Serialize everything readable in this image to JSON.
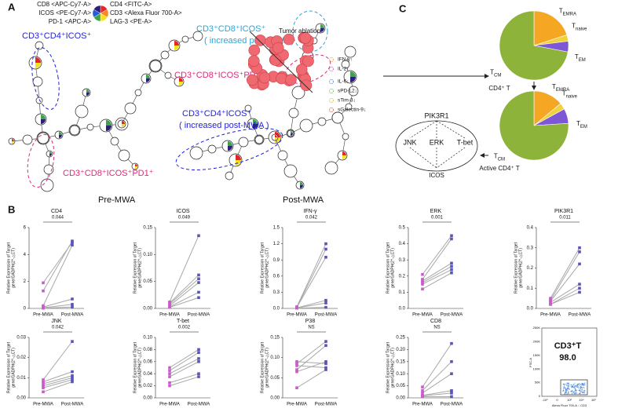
{
  "panel_labels": [
    "A",
    "B",
    "C"
  ],
  "panel_a": {
    "key_labels_left": [
      "CD8 <APC-Cy7-A>",
      "ICOS <PE-Cy7-A>",
      "PD-1 <APC-A>"
    ],
    "key_labels_right": [
      "CD4 <FITC-A>",
      "CD3 <Alexa Fluor 700-A>",
      "LAG-3 <PE-A>"
    ],
    "key_colors": [
      "#e3262b",
      "#f58a1f",
      "#f4e11b",
      "#3ca447",
      "#2a5bd7",
      "#2c1f7a"
    ],
    "annotations": [
      {
        "text": "CD3⁺CD4⁺ICOS⁺",
        "color": "#1f1fe0"
      },
      {
        "text": "CD3⁺CD8⁺ICOS⁺PD1⁺",
        "color": "#e0287a"
      },
      {
        "text": "Pre-MWA",
        "color": "#111111"
      },
      {
        "text": "CD3⁺CD8⁺ICOS⁺",
        "color": "#2aa6d8"
      },
      {
        "text": "( increased post-MWA )",
        "color": "#2aa6d8"
      },
      {
        "text": "CD3⁺CD8⁺ICOS⁺PD1⁺",
        "color": "#e0287a"
      },
      {
        "text": "CD3⁺CD4⁺ICOS⁺",
        "color": "#1f1fe0"
      },
      {
        "text": "( increased post-MWA )",
        "color": "#1f1fe0"
      },
      {
        "text": "Post-MWA",
        "color": "#111111"
      }
    ]
  },
  "chart_data": [
    {
      "type": "line",
      "title": "CD4",
      "annotation": "0.044",
      "ylabel": [
        "Relative Expression of Target",
        "gene/GADPH(2^-△CT)"
      ],
      "categories": [
        "Pre-MWA",
        "Post-MWA"
      ],
      "marker_colors": [
        "#c95cc9",
        "#5a55b8"
      ],
      "line_color": "#a8a8a8",
      "ylim": [
        0,
        6
      ],
      "yticks": [
        0,
        2,
        4,
        6
      ],
      "series": [
        {
          "values": [
            1.9,
            4.9
          ]
        },
        {
          "values": [
            1.3,
            5.0
          ]
        },
        {
          "values": [
            0.2,
            4.7
          ]
        },
        {
          "values": [
            0.1,
            0.7
          ]
        },
        {
          "values": [
            0.05,
            0.3
          ]
        },
        {
          "values": [
            0.02,
            0.1
          ]
        }
      ]
    },
    {
      "type": "line",
      "title": "ICOS",
      "annotation": "0.049",
      "ylabel": [
        "Relative Expression of Target",
        "gene/GADPH(2^-△CT)"
      ],
      "categories": [
        "Pre-MWA",
        "Post-MWA"
      ],
      "marker_colors": [
        "#c95cc9",
        "#5a55b8"
      ],
      "line_color": "#a8a8a8",
      "ylim": [
        0,
        0.15
      ],
      "yticks": [
        {
          "value": 0,
          "label": "0.00"
        },
        {
          "value": 0.05,
          "label": "0.05"
        },
        {
          "value": 0.1,
          "label": "0.10"
        },
        {
          "value": 0.15,
          "label": "0.15"
        }
      ],
      "series": [
        {
          "values": [
            0.012,
            0.135
          ]
        },
        {
          "values": [
            0.01,
            0.062
          ]
        },
        {
          "values": [
            0.008,
            0.055
          ]
        },
        {
          "values": [
            0.005,
            0.048
          ]
        },
        {
          "values": [
            0.003,
            0.03
          ]
        },
        {
          "values": [
            0.002,
            0.02
          ]
        }
      ]
    },
    {
      "type": "line",
      "title": "IFN-γ",
      "annotation": "0.042",
      "ylabel": [
        "Relative Expression of Target",
        "gene/GADPH(2^-△CT)"
      ],
      "categories": [
        "Pre-MWA",
        "Post-MWA"
      ],
      "marker_colors": [
        "#c95cc9",
        "#5a55b8"
      ],
      "line_color": "#a8a8a8",
      "ylim": [
        0,
        1.5
      ],
      "yticks": [
        {
          "value": 0,
          "label": "0.0"
        },
        0.3,
        0.6,
        0.9,
        1.2,
        1.5
      ],
      "series": [
        {
          "values": [
            0.03,
            1.2
          ]
        },
        {
          "values": [
            0.02,
            1.1
          ]
        },
        {
          "values": [
            0.02,
            0.95
          ]
        },
        {
          "values": [
            0.01,
            0.15
          ]
        },
        {
          "values": [
            0.01,
            0.1
          ]
        },
        {
          "values": [
            0.005,
            0.02
          ]
        }
      ]
    },
    {
      "type": "line",
      "title": "ERK",
      "annotation": "0.001",
      "ylabel": [
        "Relative Expression of Target",
        "gene/GADPH(2^-△CT)"
      ],
      "categories": [
        "Pre-MWA",
        "Post-MWA"
      ],
      "marker_colors": [
        "#c95cc9",
        "#5a55b8"
      ],
      "line_color": "#a8a8a8",
      "ylim": [
        0,
        0.5
      ],
      "yticks": [
        {
          "value": 0,
          "label": "0.0"
        },
        0.1,
        0.2,
        0.3,
        0.4,
        0.5
      ],
      "series": [
        {
          "values": [
            0.21,
            0.45
          ]
        },
        {
          "values": [
            0.18,
            0.43
          ]
        },
        {
          "values": [
            0.17,
            0.28
          ]
        },
        {
          "values": [
            0.16,
            0.26
          ]
        },
        {
          "values": [
            0.15,
            0.24
          ]
        },
        {
          "values": [
            0.12,
            0.22
          ]
        }
      ]
    },
    {
      "type": "line",
      "title": "PIK3R1",
      "annotation": "0.011",
      "ylabel": [
        "Relative Expression of Target",
        "gene/GADPH(2^-△CT)"
      ],
      "categories": [
        "Pre-MWA",
        "Post-MWA"
      ],
      "marker_colors": [
        "#c95cc9",
        "#5a55b8"
      ],
      "line_color": "#a8a8a8",
      "ylim": [
        0,
        0.4
      ],
      "yticks": [
        {
          "value": 0,
          "label": "0.0"
        },
        0.1,
        0.2,
        0.3,
        0.4
      ],
      "series": [
        {
          "values": [
            0.05,
            0.3
          ]
        },
        {
          "values": [
            0.04,
            0.28
          ]
        },
        {
          "values": [
            0.035,
            0.22
          ]
        },
        {
          "values": [
            0.03,
            0.12
          ]
        },
        {
          "values": [
            0.02,
            0.1
          ]
        },
        {
          "values": [
            0.02,
            0.08
          ]
        }
      ]
    },
    {
      "type": "line",
      "title": "JNK",
      "annotation": "0.042",
      "ylabel": [
        "Relative Expression of Target",
        "gene/GADPH(2^-△CT)"
      ],
      "categories": [
        "Pre-MWA",
        "Post-MWA"
      ],
      "marker_colors": [
        "#c95cc9",
        "#5a55b8"
      ],
      "line_color": "#a8a8a8",
      "ylim": [
        0,
        0.03
      ],
      "yticks": [
        {
          "value": 0,
          "label": "0.00"
        },
        0.01,
        0.02,
        0.03
      ],
      "series": [
        {
          "values": [
            0.009,
            0.028
          ]
        },
        {
          "values": [
            0.008,
            0.013
          ]
        },
        {
          "values": [
            0.007,
            0.011
          ]
        },
        {
          "values": [
            0.006,
            0.01
          ]
        },
        {
          "values": [
            0.005,
            0.009
          ]
        },
        {
          "values": [
            0.003,
            0.008
          ]
        }
      ]
    },
    {
      "type": "line",
      "title": "T-bet",
      "annotation": "0.002",
      "ylabel": [
        "Relative Expression of Target",
        "gene/GADPH(2^-△CT)"
      ],
      "categories": [
        "Pre-MWA",
        "Post-MWA"
      ],
      "marker_colors": [
        "#c95cc9",
        "#5a55b8"
      ],
      "line_color": "#a8a8a8",
      "ylim": [
        0,
        0.1
      ],
      "yticks": [
        {
          "value": 0,
          "label": "0.00"
        },
        0.02,
        0.04,
        0.06,
        0.08,
        {
          "value": 0.1,
          "label": "0.10"
        }
      ],
      "series": [
        {
          "values": [
            0.05,
            0.08
          ]
        },
        {
          "values": [
            0.045,
            0.075
          ]
        },
        {
          "values": [
            0.04,
            0.065
          ]
        },
        {
          "values": [
            0.035,
            0.06
          ]
        },
        {
          "values": [
            0.025,
            0.04
          ]
        },
        {
          "values": [
            0.02,
            0.035
          ]
        }
      ]
    },
    {
      "type": "line",
      "title": "P38",
      "annotation": "NS",
      "ylabel": [
        "Relative Expression of Target",
        "gene/GADPH(2^-△CT)"
      ],
      "categories": [
        "Pre-MWA",
        "Post-MWA"
      ],
      "marker_colors": [
        "#c95cc9",
        "#5a55b8"
      ],
      "line_color": "#a8a8a8",
      "ylim": [
        0,
        0.15
      ],
      "yticks": [
        {
          "value": 0,
          "label": "0.00"
        },
        0.05,
        {
          "value": 0.1,
          "label": "0.10"
        },
        0.15
      ],
      "series": [
        {
          "values": [
            0.09,
            0.085
          ]
        },
        {
          "values": [
            0.085,
            0.14
          ]
        },
        {
          "values": [
            0.08,
            0.075
          ]
        },
        {
          "values": [
            0.07,
            0.13
          ]
        },
        {
          "values": [
            0.065,
            0.09
          ]
        },
        {
          "values": [
            0.025,
            0.07
          ]
        }
      ]
    },
    {
      "type": "line",
      "title": "CD8",
      "annotation": "NS",
      "ylabel": [
        "Relative Expression of Target",
        "gene/GADPH(2^-△CT)"
      ],
      "categories": [
        "Pre-MWA",
        "Post-MWA"
      ],
      "marker_colors": [
        "#c95cc9",
        "#5a55b8"
      ],
      "line_color": "#a8a8a8",
      "ylim": [
        0,
        0.25
      ],
      "yticks": [
        {
          "value": 0,
          "label": "0.00"
        },
        0.05,
        {
          "value": 0.1,
          "label": "0.10"
        },
        0.15,
        {
          "value": 0.2,
          "label": "0.20"
        },
        0.25
      ],
      "series": [
        {
          "values": [
            0.045,
            0.225
          ]
        },
        {
          "values": [
            0.03,
            0.15
          ]
        },
        {
          "values": [
            0.02,
            0.1
          ]
        },
        {
          "values": [
            0.01,
            0.03
          ]
        },
        {
          "values": [
            0.008,
            0.02
          ]
        },
        {
          "values": [
            0.005,
            0.005
          ]
        }
      ]
    },
    {
      "type": "pie",
      "caption": "CD4⁺ T",
      "labels": [
        {
          "main": "T",
          "sub": "EMRA"
        },
        {
          "main": "T",
          "sub": "naive"
        },
        {
          "main": "T",
          "sub": "EM"
        },
        {
          "main": "T",
          "sub": "CM"
        }
      ],
      "values": [
        20,
        3,
        5,
        72
      ],
      "colors": [
        "#f5a623",
        "#f0d23c",
        "#7e57d6",
        "#8db33a"
      ]
    },
    {
      "type": "pie",
      "caption": "Active CD4⁺ T",
      "labels": [
        {
          "main": "T",
          "sub": "EMRA"
        },
        {
          "main": "T",
          "sub": "naive"
        },
        {
          "main": "T",
          "sub": "EM"
        },
        {
          "main": "T",
          "sub": "CM"
        }
      ],
      "values": [
        14,
        3,
        7,
        76
      ],
      "colors": [
        "#f5a623",
        "#f0d23c",
        "#7e57d6",
        "#8db33a"
      ]
    }
  ],
  "flow_plot": {
    "title": "CD3⁺T",
    "value": "98.0",
    "ylabel": "FSC-A",
    "xlabel": "Alexa Fluor 700-A :: CD3",
    "yticks": [
      "250K",
      "200K",
      "150K",
      "100K",
      "50K",
      "0"
    ],
    "xticks": [
      "-10³",
      "0",
      "10³",
      "10⁴",
      "10⁵"
    ]
  },
  "panel_c": {
    "tumor_label": "Tumor ablation",
    "cytokines": [
      {
        "text": "IFN-γ↑",
        "color": "#f5a623"
      },
      {
        "text": "IL-2↑",
        "color": "#c35bd1"
      },
      {
        "text": "IL-6↓",
        "color": "#4a7de0"
      },
      {
        "text": "sPD-L2↓",
        "color": "#5bbf4a"
      },
      {
        "text": "sTim-3↓",
        "color": "#e0c020"
      },
      {
        "text": "sGalectin-9↓",
        "color": "#e04a3a"
      }
    ],
    "pathway": {
      "top": "PIK3R1",
      "middle": [
        "JNK",
        "ERK",
        "T-bet"
      ],
      "bottom": "ICOS"
    }
  }
}
